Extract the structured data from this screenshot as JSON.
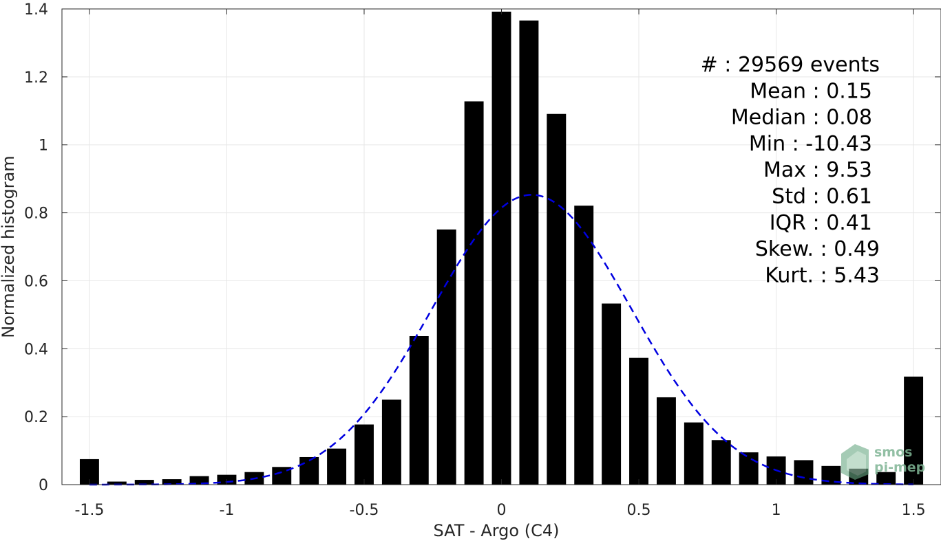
{
  "chart_data": {
    "type": "bar",
    "xlabel": "SAT - Argo (C4)",
    "ylabel": "Normalized histogram",
    "xlim": [
      -1.6,
      1.6
    ],
    "ylim": [
      0,
      1.4
    ],
    "xticks": [
      -1.5,
      -1,
      -0.5,
      0,
      0.5,
      1,
      1.5
    ],
    "xtick_labels": [
      "-1.5",
      "-1",
      "-0.5",
      "0",
      "0.5",
      "1",
      "1.5"
    ],
    "yticks": [
      0,
      0.2,
      0.4,
      0.6,
      0.8,
      1,
      1.2,
      1.4
    ],
    "ytick_labels": [
      "0",
      "0.2",
      "0.4",
      "0.6",
      "0.8",
      "1",
      "1.2",
      "1.4"
    ],
    "grid": true,
    "bar_color": "#000000",
    "bin_width": 0.1,
    "x": [
      -1.5,
      -1.4,
      -1.3,
      -1.2,
      -1.1,
      -1.0,
      -0.9,
      -0.8,
      -0.7,
      -0.6,
      -0.5,
      -0.4,
      -0.3,
      -0.2,
      -0.1,
      0.0,
      0.1,
      0.2,
      0.3,
      0.4,
      0.5,
      0.6,
      0.7,
      0.8,
      0.9,
      1.0,
      1.1,
      1.2,
      1.3,
      1.4,
      1.5
    ],
    "values": [
      0.075,
      0.009,
      0.014,
      0.016,
      0.025,
      0.029,
      0.037,
      0.052,
      0.081,
      0.106,
      0.177,
      0.25,
      0.437,
      0.751,
      1.128,
      1.392,
      1.366,
      1.091,
      0.821,
      0.533,
      0.373,
      0.257,
      0.183,
      0.131,
      0.095,
      0.083,
      0.072,
      0.055,
      0.047,
      0.037,
      0.318
    ],
    "fit_curve": {
      "type": "gaussian",
      "mean": 0.11,
      "peak": 0.853,
      "sigma": 0.363,
      "color": "#0000e0",
      "style": "dashed",
      "x_range": [
        -1.5,
        1.5
      ]
    },
    "stats": [
      "#  : 29569 events",
      "Mean : 0.15",
      "Median : 0.08",
      "Min : -10.43",
      "Max : 9.53",
      "Std : 0.61",
      "IQR : 0.41",
      "Skew. : 0.49",
      "Kurt. : 5.43"
    ]
  },
  "logo": {
    "line1": "smos",
    "line2": "pi-mep",
    "color": "#7fb595"
  }
}
